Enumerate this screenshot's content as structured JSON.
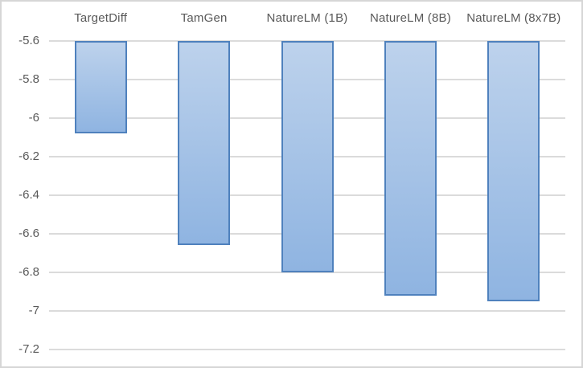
{
  "chart_data": {
    "type": "bar",
    "title": "",
    "xlabel": "",
    "ylabel": "",
    "categories": [
      "TargetDiff",
      "TamGen",
      "NatureLM (1B)",
      "NatureLM (8B)",
      "NatureLM (8x7B)"
    ],
    "values": [
      -6.08,
      -6.66,
      -6.8,
      -6.92,
      -6.95
    ],
    "bar_origin": -5.6,
    "ylim": [
      -7.2,
      -5.6
    ],
    "yticks": [
      -5.6,
      -5.8,
      -6.0,
      -6.2,
      -6.4,
      -6.6,
      -6.8,
      -7.0,
      -7.2
    ],
    "ytick_labels": [
      "-5.6",
      "-5.8",
      "-6",
      "-6.2",
      "-6.4",
      "-6.6",
      "-6.8",
      "-7",
      "-7.2"
    ],
    "grid": true,
    "legend": false,
    "category_axis_position": "top",
    "colors": {
      "bar_fill_top": "#BDD2EC",
      "bar_fill_bottom": "#8FB4E1",
      "bar_border": "#4F81BD",
      "gridline": "#DBDBDB",
      "axis_label": "#595959",
      "chart_border": "#D6D6D6",
      "background": "#FFFFFF"
    }
  }
}
